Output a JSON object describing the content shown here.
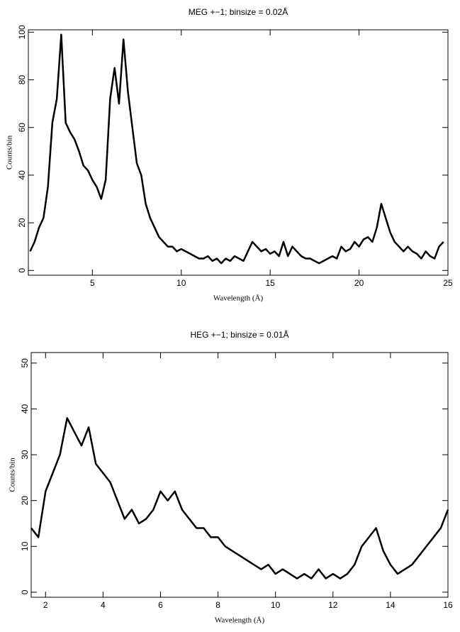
{
  "chart_data": [
    {
      "type": "line",
      "title": "MEG +−1; binsize = 0.02Å",
      "xlabel": "Wavelength (Å)",
      "ylabel": "Counts/bin",
      "xlim": [
        1.4,
        25
      ],
      "ylim": [
        -2,
        101
      ],
      "xticks": [
        5,
        10,
        15,
        20,
        25
      ],
      "yticks": [
        0,
        20,
        40,
        60,
        80,
        100
      ],
      "series": [
        {
          "color": "#000000",
          "x": [
            1.5,
            1.75,
            2.0,
            2.25,
            2.5,
            2.75,
            3.0,
            3.25,
            3.5,
            3.75,
            4.0,
            4.25,
            4.5,
            4.75,
            5.0,
            5.25,
            5.5,
            5.75,
            6.0,
            6.25,
            6.5,
            6.75,
            7.0,
            7.25,
            7.5,
            7.75,
            8.0,
            8.25,
            8.5,
            8.75,
            9.0,
            9.25,
            9.5,
            9.75,
            10.0,
            10.25,
            10.5,
            10.75,
            11.0,
            11.25,
            11.5,
            11.75,
            12.0,
            12.25,
            12.5,
            12.75,
            13.0,
            13.25,
            13.5,
            13.75,
            14.0,
            14.25,
            14.5,
            14.75,
            15.0,
            15.25,
            15.5,
            15.75,
            16.0,
            16.25,
            16.5,
            16.75,
            17.0,
            17.25,
            17.5,
            17.75,
            18.0,
            18.25,
            18.5,
            18.75,
            19.0,
            19.25,
            19.5,
            19.75,
            20.0,
            20.25,
            20.5,
            20.75,
            21.0,
            21.25,
            21.5,
            21.75,
            22.0,
            22.25,
            22.5,
            22.75,
            23.0,
            23.25,
            23.5,
            23.75,
            24.0,
            24.25,
            24.5,
            24.75
          ],
          "values": [
            8,
            12,
            18,
            22,
            35,
            62,
            72,
            99,
            62,
            58,
            55,
            50,
            44,
            42,
            38,
            35,
            30,
            38,
            72,
            85,
            70,
            97,
            75,
            60,
            45,
            40,
            28,
            22,
            18,
            14,
            12,
            10,
            10,
            8,
            9,
            8,
            7,
            6,
            5,
            5,
            6,
            4,
            5,
            3,
            5,
            4,
            6,
            5,
            4,
            8,
            12,
            10,
            8,
            9,
            7,
            8,
            6,
            12,
            6,
            10,
            8,
            6,
            5,
            5,
            4,
            3,
            4,
            5,
            6,
            5,
            10,
            8,
            9,
            12,
            10,
            13,
            14,
            12,
            18,
            28,
            22,
            16,
            12,
            10,
            8,
            10,
            8,
            7,
            5,
            8,
            6,
            5,
            10,
            12
          ]
        }
      ]
    },
    {
      "type": "line",
      "title": "HEG +−1; binsize = 0.01Å",
      "xlabel": "Wavelength (Å)",
      "ylabel": "Counts/bin",
      "xlim": [
        1.5,
        16
      ],
      "ylim": [
        -1.1,
        52.3
      ],
      "xticks": [
        2,
        4,
        6,
        8,
        10,
        12,
        14,
        16
      ],
      "yticks": [
        0,
        10,
        20,
        30,
        40,
        50
      ],
      "series": [
        {
          "color": "#000000",
          "x": [
            1.5,
            1.75,
            2.0,
            2.25,
            2.5,
            2.75,
            3.0,
            3.25,
            3.5,
            3.75,
            4.0,
            4.25,
            4.5,
            4.75,
            5.0,
            5.25,
            5.5,
            5.75,
            6.0,
            6.25,
            6.5,
            6.75,
            7.0,
            7.25,
            7.5,
            7.75,
            8.0,
            8.25,
            8.5,
            8.75,
            9.0,
            9.25,
            9.5,
            9.75,
            10.0,
            10.25,
            10.5,
            10.75,
            11.0,
            11.25,
            11.5,
            11.75,
            12.0,
            12.25,
            12.5,
            12.75,
            13.0,
            13.25,
            13.5,
            13.75,
            14.0,
            14.25,
            14.5,
            14.75,
            15.0,
            15.25,
            15.5,
            15.75,
            16.0
          ],
          "values": [
            14,
            12,
            22,
            26,
            30,
            38,
            35,
            32,
            36,
            28,
            26,
            24,
            20,
            16,
            18,
            15,
            16,
            18,
            22,
            20,
            22,
            18,
            16,
            14,
            14,
            12,
            12,
            10,
            9,
            8,
            7,
            6,
            5,
            6,
            4,
            5,
            4,
            3,
            4,
            3,
            5,
            3,
            4,
            3,
            4,
            6,
            10,
            12,
            14,
            9,
            6,
            4,
            5,
            6,
            8,
            10,
            12,
            14,
            18
          ]
        }
      ]
    }
  ]
}
